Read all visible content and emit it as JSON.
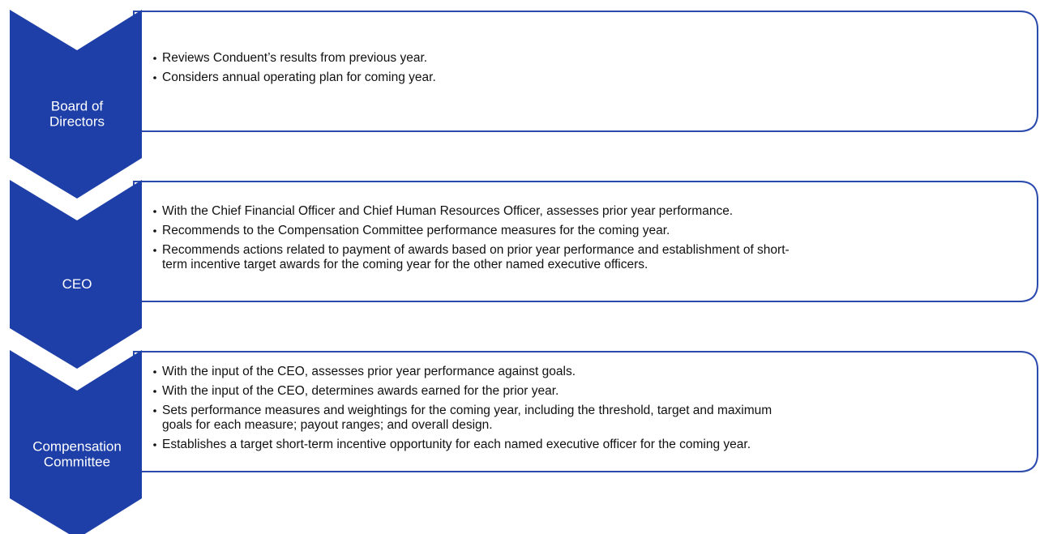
{
  "steps": [
    {
      "label": [
        "Board of",
        "Directors"
      ],
      "bullets": [
        [
          "Reviews Conduent’s results from previous year."
        ],
        [
          "Considers annual operating plan for coming year."
        ]
      ]
    },
    {
      "label": [
        "CEO"
      ],
      "bullets": [
        [
          "With the Chief Financial Officer and Chief Human Resources Officer, assesses prior year performance."
        ],
        [
          "Recommends to the Compensation Committee performance measures for the coming year."
        ],
        [
          "Recommends actions related to payment of awards based on prior year performance and establishment of short-",
          "term incentive target awards for the coming year for the other named executive officers."
        ]
      ]
    },
    {
      "label": [
        "Compensation",
        "Committee"
      ],
      "bullets": [
        [
          "With the input of the CEO, assesses prior year performance against goals."
        ],
        [
          "With the input of the CEO, determines awards earned for the prior year."
        ],
        [
          "Sets performance measures and weightings for the coming year, including the threshold, target and maximum",
          "goals for each measure; payout ranges; and overall design."
        ],
        [
          "Establishes a target short-term incentive opportunity for each named executive officer for the coming year."
        ]
      ]
    }
  ]
}
